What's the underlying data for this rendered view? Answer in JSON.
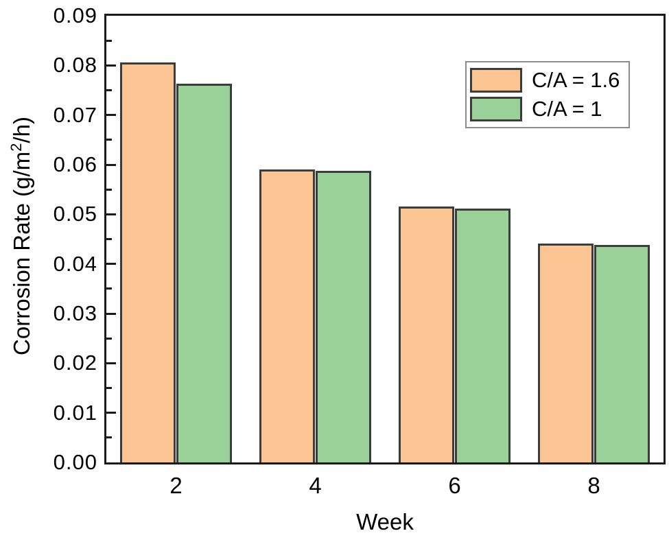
{
  "figure": {
    "background_color": "#ffffff",
    "axis_color": "#1a1a1a",
    "text_color": "#000000",
    "legend_border_color": "#8c8c8c",
    "bar_edge_color": "#3c3c3c"
  },
  "chart_data": {
    "type": "bar",
    "title": "",
    "xlabel": "Week",
    "ylabel": "Corrosion Rate (g/m²/h)",
    "ylabel_parts": {
      "pre": "Corrosion Rate (g/m",
      "sup": "2",
      "post": "/h)"
    },
    "categories": [
      "2",
      "4",
      "6",
      "8"
    ],
    "series": [
      {
        "name": "C/A = 1.6",
        "color": "#fac593",
        "values": [
          0.0806,
          0.0591,
          0.0515,
          0.0441
        ]
      },
      {
        "name": "C/A = 1",
        "color": "#99d199",
        "values": [
          0.0763,
          0.0588,
          0.0511,
          0.0438
        ]
      }
    ],
    "ylim": [
      0,
      0.09
    ],
    "y_major_step": 0.01,
    "y_minor_step": 0.005,
    "y_tick_decimals": 2,
    "y_tick_labels": [
      "0.00",
      "0.01",
      "0.02",
      "0.03",
      "0.04",
      "0.05",
      "0.06",
      "0.07",
      "0.08",
      "0.09"
    ],
    "grid": false,
    "legend_position": "top-right",
    "bar_group_fraction": 0.8
  }
}
